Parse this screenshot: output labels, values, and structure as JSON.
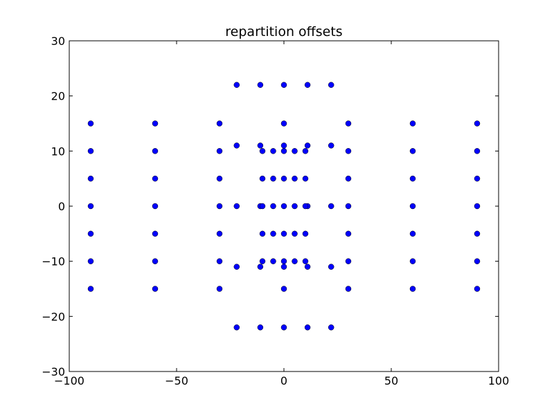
{
  "chart_data": {
    "type": "scatter",
    "title": "repartition offsets",
    "xlabel": "",
    "ylabel": "",
    "xlim": [
      -100,
      100
    ],
    "ylim": [
      -30,
      30
    ],
    "xticks": [
      -100,
      -50,
      0,
      50,
      100
    ],
    "yticks": [
      -30,
      -20,
      -10,
      0,
      10,
      20,
      30
    ],
    "xtick_labels": [
      "−100",
      "−50",
      "0",
      "50",
      "100"
    ],
    "ytick_labels": [
      "−30",
      "−20",
      "−10",
      "0",
      "10",
      "20",
      "30"
    ],
    "grid": false,
    "marker_color": "#0000ff",
    "marker_edge_color": "#000000",
    "series": [
      {
        "points": [
          [
            -90,
            15
          ],
          [
            -90,
            10
          ],
          [
            -90,
            5
          ],
          [
            -90,
            0
          ],
          [
            -90,
            -5
          ],
          [
            -90,
            -10
          ],
          [
            -90,
            -15
          ],
          [
            -60,
            15
          ],
          [
            -60,
            10
          ],
          [
            -60,
            5
          ],
          [
            -60,
            0
          ],
          [
            -60,
            -5
          ],
          [
            -60,
            -10
          ],
          [
            -60,
            -15
          ],
          [
            -30,
            15
          ],
          [
            -30,
            10
          ],
          [
            -30,
            5
          ],
          [
            -30,
            0
          ],
          [
            -30,
            -5
          ],
          [
            -30,
            -10
          ],
          [
            -30,
            -15
          ],
          [
            30,
            15
          ],
          [
            30,
            10
          ],
          [
            30,
            5
          ],
          [
            30,
            0
          ],
          [
            30,
            -5
          ],
          [
            30,
            -10
          ],
          [
            30,
            -15
          ],
          [
            60,
            15
          ],
          [
            60,
            10
          ],
          [
            60,
            5
          ],
          [
            60,
            0
          ],
          [
            60,
            -5
          ],
          [
            60,
            -10
          ],
          [
            60,
            -15
          ],
          [
            90,
            15
          ],
          [
            90,
            10
          ],
          [
            90,
            5
          ],
          [
            90,
            0
          ],
          [
            90,
            -5
          ],
          [
            90,
            -10
          ],
          [
            90,
            -15
          ],
          [
            -22,
            22
          ],
          [
            -11,
            22
          ],
          [
            0,
            22
          ],
          [
            11,
            22
          ],
          [
            22,
            22
          ],
          [
            -22,
            11
          ],
          [
            -11,
            11
          ],
          [
            0,
            11
          ],
          [
            11,
            11
          ],
          [
            22,
            11
          ],
          [
            -22,
            0
          ],
          [
            -11,
            0
          ],
          [
            0,
            0
          ],
          [
            11,
            0
          ],
          [
            22,
            0
          ],
          [
            -22,
            -11
          ],
          [
            -11,
            -11
          ],
          [
            0,
            -11
          ],
          [
            11,
            -11
          ],
          [
            22,
            -11
          ],
          [
            -22,
            -22
          ],
          [
            -11,
            -22
          ],
          [
            0,
            -22
          ],
          [
            11,
            -22
          ],
          [
            22,
            -22
          ],
          [
            -10,
            10
          ],
          [
            -5,
            10
          ],
          [
            0,
            10
          ],
          [
            5,
            10
          ],
          [
            10,
            10
          ],
          [
            -10,
            5
          ],
          [
            -5,
            5
          ],
          [
            0,
            5
          ],
          [
            5,
            5
          ],
          [
            10,
            5
          ],
          [
            -10,
            0
          ],
          [
            -5,
            0
          ],
          [
            5,
            0
          ],
          [
            10,
            0
          ],
          [
            -10,
            -5
          ],
          [
            -5,
            -5
          ],
          [
            0,
            -5
          ],
          [
            5,
            -5
          ],
          [
            10,
            -5
          ],
          [
            -10,
            -10
          ],
          [
            -5,
            -10
          ],
          [
            0,
            -10
          ],
          [
            5,
            -10
          ],
          [
            10,
            -10
          ],
          [
            0,
            15
          ],
          [
            0,
            -15
          ]
        ]
      }
    ]
  }
}
